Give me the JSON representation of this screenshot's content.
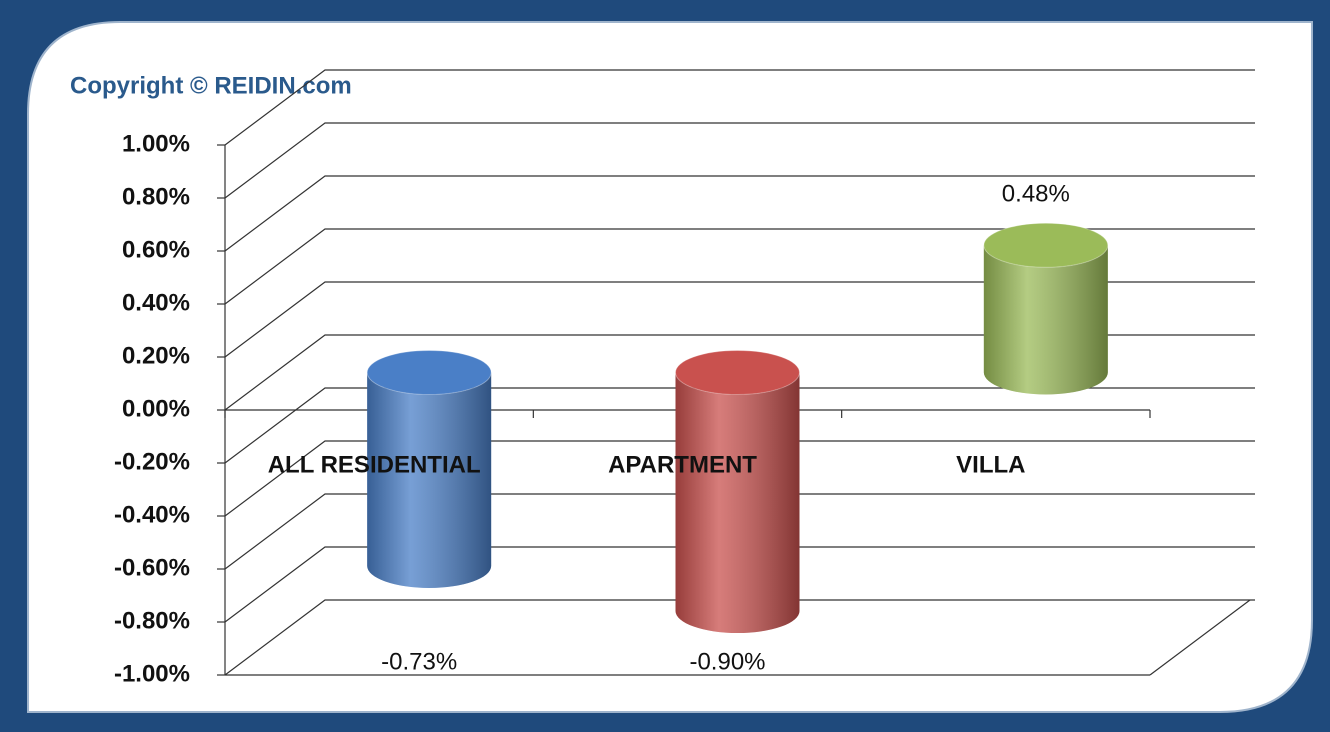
{
  "chart_data": {
    "type": "bar",
    "title": "Copyright © REIDIN.com",
    "categories": [
      "ALL RESIDENTIAL",
      "APARTMENT",
      "VILLA"
    ],
    "values": [
      -0.73,
      -0.9,
      0.48
    ],
    "value_labels": [
      "-0.73%",
      "-0.90%",
      "0.48%"
    ],
    "colors": [
      "#4a7fc7",
      "#c9514e",
      "#9bbb59"
    ],
    "ylim": [
      -1,
      1
    ],
    "yticks": [
      {
        "value": 1,
        "label": "1.00%"
      },
      {
        "value": 0.8,
        "label": "0.80%"
      },
      {
        "value": 0.6,
        "label": "0.60%"
      },
      {
        "value": 0.4,
        "label": "0.40%"
      },
      {
        "value": 0.2,
        "label": "0.20%"
      },
      {
        "value": 0,
        "label": "0.00%"
      },
      {
        "value": -0.2,
        "label": "-0.20%"
      },
      {
        "value": -0.4,
        "label": "-0.40%"
      },
      {
        "value": -0.6,
        "label": "-0.60%"
      },
      {
        "value": -0.8,
        "label": "-0.80%"
      },
      {
        "value": -1,
        "label": "-1.00%"
      }
    ],
    "grid": true
  }
}
